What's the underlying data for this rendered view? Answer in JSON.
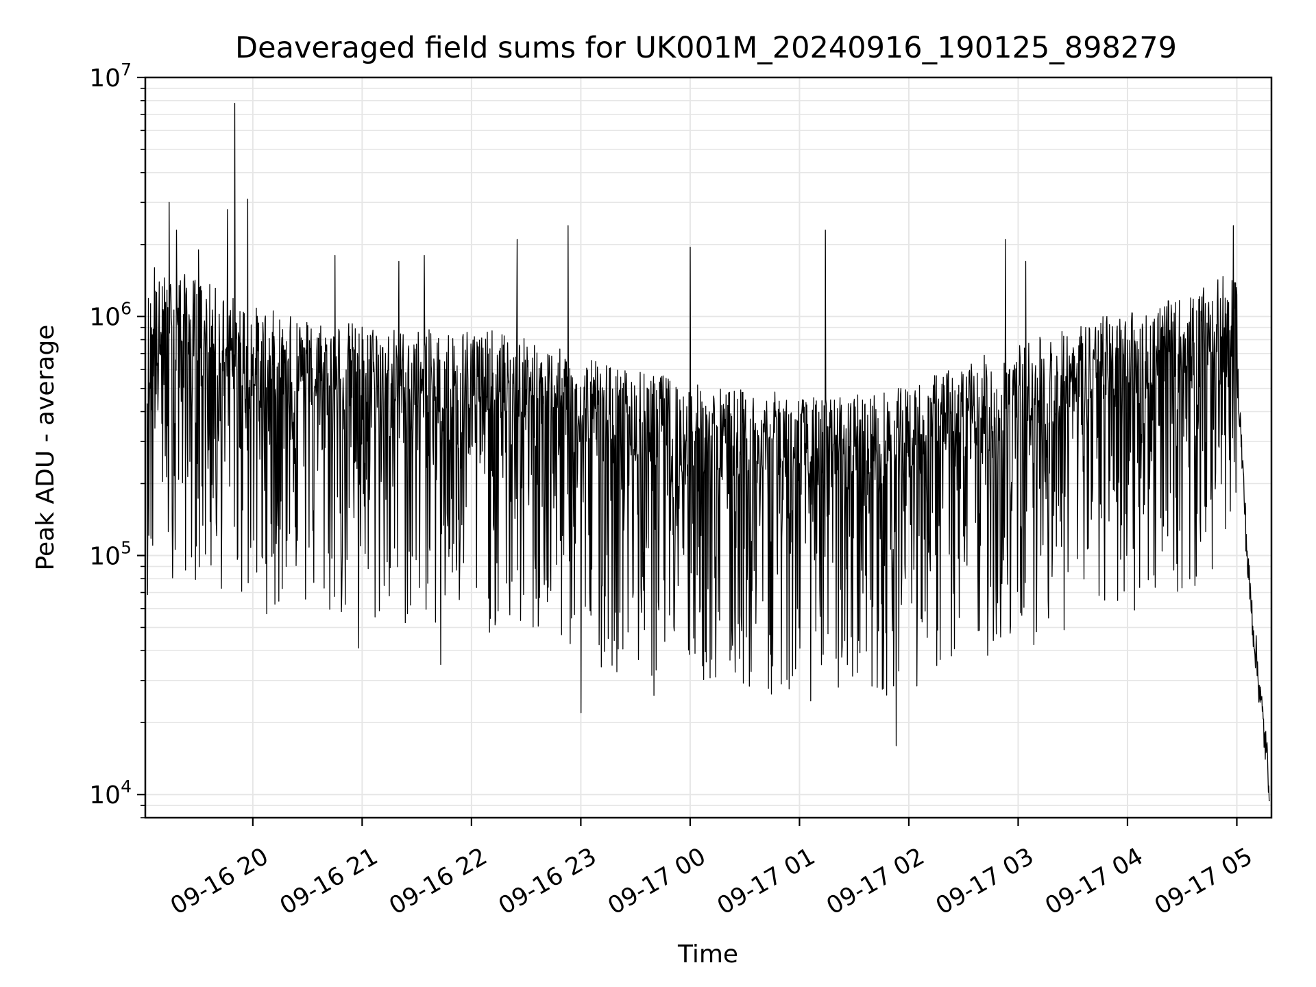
{
  "chart_data": {
    "type": "line",
    "title": "Deaveraged field sums for UK001M_20240916_190125_898279",
    "xlabel": "Time",
    "ylabel": "Peak ADU - average",
    "yscale": "log",
    "ylim": [
      8000,
      10000000
    ],
    "xlim": [
      "2024-09-16 19:01",
      "2024-09-17 05:19"
    ],
    "grid": true,
    "x_ticks": [
      "09-16 20",
      "09-16 21",
      "09-16 22",
      "09-16 23",
      "09-17 00",
      "09-17 01",
      "09-17 02",
      "09-17 03",
      "09-17 04",
      "09-17 05"
    ],
    "y_ticks": [
      {
        "base": "10",
        "exp": "4",
        "value": 10000
      },
      {
        "base": "10",
        "exp": "5",
        "value": 100000
      },
      {
        "base": "10",
        "exp": "6",
        "value": 1000000
      },
      {
        "base": "10",
        "exp": "7",
        "value": 10000000
      }
    ],
    "line_color": "#000000",
    "grid_color": "#e6e6e6",
    "series": [
      {
        "x": [
          "2024-09-16 19:02",
          "2024-09-16 19:10",
          "2024-09-16 19:20",
          "2024-09-16 19:30",
          "2024-09-16 19:40",
          "2024-09-16 19:45",
          "2024-09-16 19:50",
          "2024-09-16 20:00",
          "2024-09-16 20:10",
          "2024-09-16 20:20",
          "2024-09-16 20:30",
          "2024-09-16 20:40",
          "2024-09-16 20:50",
          "2024-09-16 21:00",
          "2024-09-16 21:10",
          "2024-09-16 21:20",
          "2024-09-16 21:30",
          "2024-09-16 21:40",
          "2024-09-16 21:50",
          "2024-09-16 22:00",
          "2024-09-16 22:10",
          "2024-09-16 22:20",
          "2024-09-16 22:30",
          "2024-09-16 22:40",
          "2024-09-16 22:50",
          "2024-09-16 23:00",
          "2024-09-16 23:10",
          "2024-09-16 23:20",
          "2024-09-16 23:30",
          "2024-09-16 23:40",
          "2024-09-16 23:50",
          "2024-09-17 00:00",
          "2024-09-17 00:10",
          "2024-09-17 00:20",
          "2024-09-17 00:30",
          "2024-09-17 00:40",
          "2024-09-17 00:50",
          "2024-09-17 01:00",
          "2024-09-17 01:10",
          "2024-09-17 01:20",
          "2024-09-17 01:30",
          "2024-09-17 01:40",
          "2024-09-17 01:50",
          "2024-09-17 02:00",
          "2024-09-17 02:10",
          "2024-09-17 02:20",
          "2024-09-17 02:30",
          "2024-09-17 02:40",
          "2024-09-17 02:50",
          "2024-09-17 03:00",
          "2024-09-17 03:10",
          "2024-09-17 03:20",
          "2024-09-17 03:30",
          "2024-09-17 03:40",
          "2024-09-17 03:50",
          "2024-09-17 04:00",
          "2024-09-17 04:10",
          "2024-09-17 04:20",
          "2024-09-17 04:30",
          "2024-09-17 04:40",
          "2024-09-17 04:50",
          "2024-09-17 05:00",
          "2024-09-17 05:03",
          "2024-09-17 05:06",
          "2024-09-17 05:09",
          "2024-09-17 05:12",
          "2024-09-17 05:15",
          "2024-09-17 05:18"
        ],
        "y": [
          600000,
          700000,
          720000,
          680000,
          620000,
          600000,
          580000,
          520000,
          500000,
          480000,
          470000,
          460000,
          450000,
          440000,
          430000,
          420000,
          420000,
          410000,
          420000,
          430000,
          410000,
          400000,
          380000,
          360000,
          340000,
          320000,
          300000,
          290000,
          280000,
          270000,
          260000,
          250000,
          240000,
          240000,
          230000,
          230000,
          225000,
          220000,
          215000,
          220000,
          220000,
          225000,
          230000,
          240000,
          260000,
          280000,
          300000,
          320000,
          340000,
          360000,
          380000,
          400000,
          430000,
          460000,
          480000,
          500000,
          520000,
          540000,
          560000,
          600000,
          700000,
          650000,
          250000,
          90000,
          50000,
          30000,
          18000,
          11000
        ]
      }
    ],
    "spikes": {
      "x": [
        "2024-09-16 19:06",
        "2024-09-16 19:14",
        "2024-09-16 19:18",
        "2024-09-16 19:30",
        "2024-09-16 19:46",
        "2024-09-16 19:50",
        "2024-09-16 19:57",
        "2024-09-16 20:45",
        "2024-09-16 21:20",
        "2024-09-16 21:34",
        "2024-09-16 22:25",
        "2024-09-16 22:53",
        "2024-09-17 00:00",
        "2024-09-17 01:14",
        "2024-09-17 02:53",
        "2024-09-17 03:04",
        "2024-09-17 04:58"
      ],
      "y": [
        1600000,
        3000000,
        2300000,
        1900000,
        2800000,
        7800000,
        3100000,
        1800000,
        1700000,
        1800000,
        2100000,
        2400000,
        1950000,
        2300000,
        2100000,
        1700000,
        2400000
      ]
    },
    "dips": {
      "x": [
        "2024-09-16 20:58",
        "2024-09-16 21:43",
        "2024-09-16 23:00",
        "2024-09-16 23:40",
        "2024-09-17 00:14",
        "2024-09-17 00:50",
        "2024-09-17 01:53",
        "2024-09-17 02:48",
        "2024-09-17 03:10"
      ],
      "y": [
        41000,
        35000,
        22000,
        26000,
        31000,
        29000,
        16000,
        47000,
        48000
      ]
    }
  }
}
